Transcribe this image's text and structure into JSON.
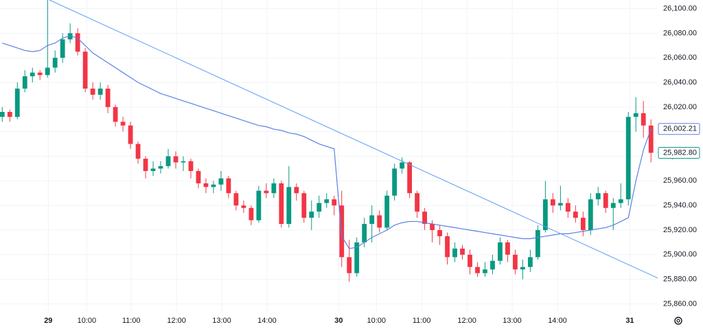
{
  "chart_data": {
    "type": "candlestick",
    "up_color": "#089981",
    "down_color": "#f23645",
    "xlim": [
      -0.3,
      86.8
    ],
    "ylim": [
      25853,
      26107
    ],
    "xticks": [
      {
        "value": 6.1,
        "label": "29"
      },
      {
        "value": 11.2,
        "label": "10:00"
      },
      {
        "value": 17.1,
        "label": "11:00"
      },
      {
        "value": 23.1,
        "label": "12:00"
      },
      {
        "value": 29.1,
        "label": "13:00"
      },
      {
        "value": 35.1,
        "label": "14:00"
      },
      {
        "value": 44.6,
        "label": "30"
      },
      {
        "value": 49.6,
        "label": "10:00"
      },
      {
        "value": 55.6,
        "label": "11:00"
      },
      {
        "value": 61.6,
        "label": "12:00"
      },
      {
        "value": 67.6,
        "label": "13:00"
      },
      {
        "value": 73.6,
        "label": "14:00"
      },
      {
        "value": 83.2,
        "label": "31"
      }
    ],
    "yticks": [
      {
        "value": 25860,
        "label": "25,860.00"
      },
      {
        "value": 25880,
        "label": "25,880.00"
      },
      {
        "value": 25900,
        "label": "25,900.00"
      },
      {
        "value": 25920,
        "label": "25,920.00"
      },
      {
        "value": 25940,
        "label": "25,940.00"
      },
      {
        "value": 25960,
        "label": "25,960.00"
      },
      {
        "value": 25980,
        "label": "25,980.00"
      },
      {
        "value": 26000,
        "label": "26,000.00"
      },
      {
        "value": 26020,
        "label": "26,020.00"
      },
      {
        "value": 26040,
        "label": "26,040.00"
      },
      {
        "value": 26060,
        "label": "26,060.00"
      },
      {
        "value": 26080,
        "label": "26,080.00"
      },
      {
        "value": 26100,
        "label": "26,100.00"
      }
    ],
    "grid": true,
    "ohlc": [
      [
        26012,
        26020,
        26008,
        26016
      ],
      [
        26016,
        26018,
        26008,
        26012
      ],
      [
        26012,
        26040,
        26010,
        26035
      ],
      [
        26035,
        26050,
        26032,
        26045
      ],
      [
        26045,
        26052,
        26040,
        26048
      ],
      [
        26048,
        26050,
        26042,
        26046
      ],
      [
        26046,
        26107,
        26044,
        26052
      ],
      [
        26052,
        26066,
        26048,
        26060
      ],
      [
        26060,
        26080,
        26056,
        26075
      ],
      [
        26075,
        26088,
        26072,
        26080
      ],
      [
        26080,
        26084,
        26062,
        26065
      ],
      [
        26065,
        26068,
        26032,
        26035
      ],
      [
        26035,
        26040,
        26026,
        26030
      ],
      [
        26030,
        26040,
        26026,
        26035
      ],
      [
        26035,
        26038,
        26015,
        26020
      ],
      [
        26020,
        26022,
        26004,
        26008
      ],
      [
        26008,
        26012,
        26000,
        26005
      ],
      [
        26005,
        26008,
        25986,
        25990
      ],
      [
        25990,
        25992,
        25974,
        25978
      ],
      [
        25978,
        25980,
        25962,
        25968
      ],
      [
        25968,
        25976,
        25964,
        25970
      ],
      [
        25970,
        25976,
        25966,
        25972
      ],
      [
        25972,
        25986,
        25970,
        25980
      ],
      [
        25980,
        25984,
        25970,
        25975
      ],
      [
        25975,
        25980,
        25968,
        25976
      ],
      [
        25976,
        25978,
        25962,
        25968
      ],
      [
        25968,
        25970,
        25954,
        25958
      ],
      [
        25958,
        25962,
        25950,
        25955
      ],
      [
        25955,
        25960,
        25950,
        25957
      ],
      [
        25957,
        25968,
        25952,
        25962
      ],
      [
        25962,
        25964,
        25946,
        25950
      ],
      [
        25950,
        25952,
        25936,
        25940
      ],
      [
        25940,
        25944,
        25934,
        25938
      ],
      [
        25938,
        25940,
        25924,
        25928
      ],
      [
        25928,
        25956,
        25926,
        25952
      ],
      [
        25952,
        25958,
        25946,
        25950
      ],
      [
        25950,
        25962,
        25946,
        25958
      ],
      [
        25958,
        25960,
        25922,
        25925
      ],
      [
        25925,
        25972,
        25922,
        25955
      ],
      [
        25955,
        25958,
        25944,
        25950
      ],
      [
        25950,
        25952,
        25926,
        25930
      ],
      [
        25930,
        25944,
        25920,
        25935
      ],
      [
        25935,
        25948,
        25930,
        25942
      ],
      [
        25942,
        25950,
        25938,
        25945
      ],
      [
        25945,
        25948,
        25932,
        25940
      ],
      [
        25940,
        25952,
        25890,
        25898
      ],
      [
        25898,
        25912,
        25878,
        25885
      ],
      [
        25885,
        25914,
        25882,
        25910
      ],
      [
        25910,
        25930,
        25906,
        25925
      ],
      [
        25925,
        25940,
        25910,
        25932
      ],
      [
        25932,
        25936,
        25918,
        25922
      ],
      [
        25922,
        25952,
        25920,
        25948
      ],
      [
        25948,
        25974,
        25944,
        25970
      ],
      [
        25970,
        25979,
        25966,
        25975
      ],
      [
        25975,
        25976,
        25946,
        25950
      ],
      [
        25950,
        25952,
        25930,
        25935
      ],
      [
        25935,
        25938,
        25920,
        25925
      ],
      [
        25925,
        25928,
        25910,
        25920
      ],
      [
        25920,
        25924,
        25908,
        25915
      ],
      [
        25915,
        25918,
        25892,
        25898
      ],
      [
        25898,
        25910,
        25894,
        25905
      ],
      [
        25905,
        25908,
        25896,
        25900
      ],
      [
        25900,
        25904,
        25884,
        25890
      ],
      [
        25890,
        25894,
        25882,
        25885
      ],
      [
        25885,
        25894,
        25882,
        25888
      ],
      [
        25888,
        25900,
        25884,
        25895
      ],
      [
        25895,
        25914,
        25892,
        25910
      ],
      [
        25910,
        25912,
        25894,
        25900
      ],
      [
        25900,
        25904,
        25884,
        25888
      ],
      [
        25888,
        25896,
        25880,
        25890
      ],
      [
        25890,
        25904,
        25886,
        25898
      ],
      [
        25898,
        25924,
        25896,
        25920
      ],
      [
        25920,
        25960,
        25918,
        25945
      ],
      [
        25945,
        25950,
        25934,
        25940
      ],
      [
        25940,
        25956,
        25936,
        25942
      ],
      [
        25942,
        25946,
        25930,
        25935
      ],
      [
        25935,
        25940,
        25926,
        25930
      ],
      [
        25930,
        25935,
        25915,
        25920
      ],
      [
        25920,
        25950,
        25916,
        25945
      ],
      [
        25945,
        25955,
        25940,
        25950
      ],
      [
        25950,
        25952,
        25934,
        25938
      ],
      [
        25938,
        25946,
        25920,
        25942
      ],
      [
        25942,
        25958,
        25938,
        25945
      ],
      [
        25945,
        26016,
        25940,
        26012
      ],
      [
        26012,
        26028,
        26000,
        26015
      ],
      [
        26015,
        26025,
        25995,
        26005
      ],
      [
        26005,
        26010,
        25975,
        25982.8
      ]
    ],
    "average": {
      "color": "#5b7fe6",
      "values": [
        26072,
        26070,
        26068,
        26066,
        26065,
        26066,
        26070,
        26072,
        26076,
        26078,
        26076,
        26070,
        26064,
        26060,
        26056,
        26052,
        26048,
        26044,
        26040,
        26037,
        26034,
        26031,
        26029,
        26027,
        26025,
        26023,
        26021,
        26019,
        26017,
        26015,
        26013,
        26011,
        26009,
        26007,
        26005,
        26004,
        26002,
        26001,
        25999,
        25998,
        25996,
        25993,
        25990,
        25988,
        25986,
        25915,
        25905,
        25906,
        25910,
        25914,
        25917,
        25920,
        25924,
        25926,
        25927,
        25927,
        25926,
        25925,
        25924,
        25923,
        25922,
        25921,
        25920,
        25919,
        25918,
        25917,
        25916,
        25915,
        25914,
        25913,
        25913,
        25914,
        25915,
        25916,
        25917,
        25917,
        25918,
        25919,
        25920,
        25921,
        25922,
        25924,
        25927,
        25930,
        25960,
        25985,
        26002.21
      ]
    },
    "trendline": {
      "color": "#5b9cf6",
      "x": [
        6.25,
        86.9
      ],
      "values": [
        26107,
        25881
      ]
    },
    "last_labels": [
      {
        "value": 26002.21,
        "label": "26,002.21",
        "color": "#5b7fe6"
      },
      {
        "value": 25982.8,
        "label": "25,982.80",
        "color": "#089981"
      }
    ]
  }
}
